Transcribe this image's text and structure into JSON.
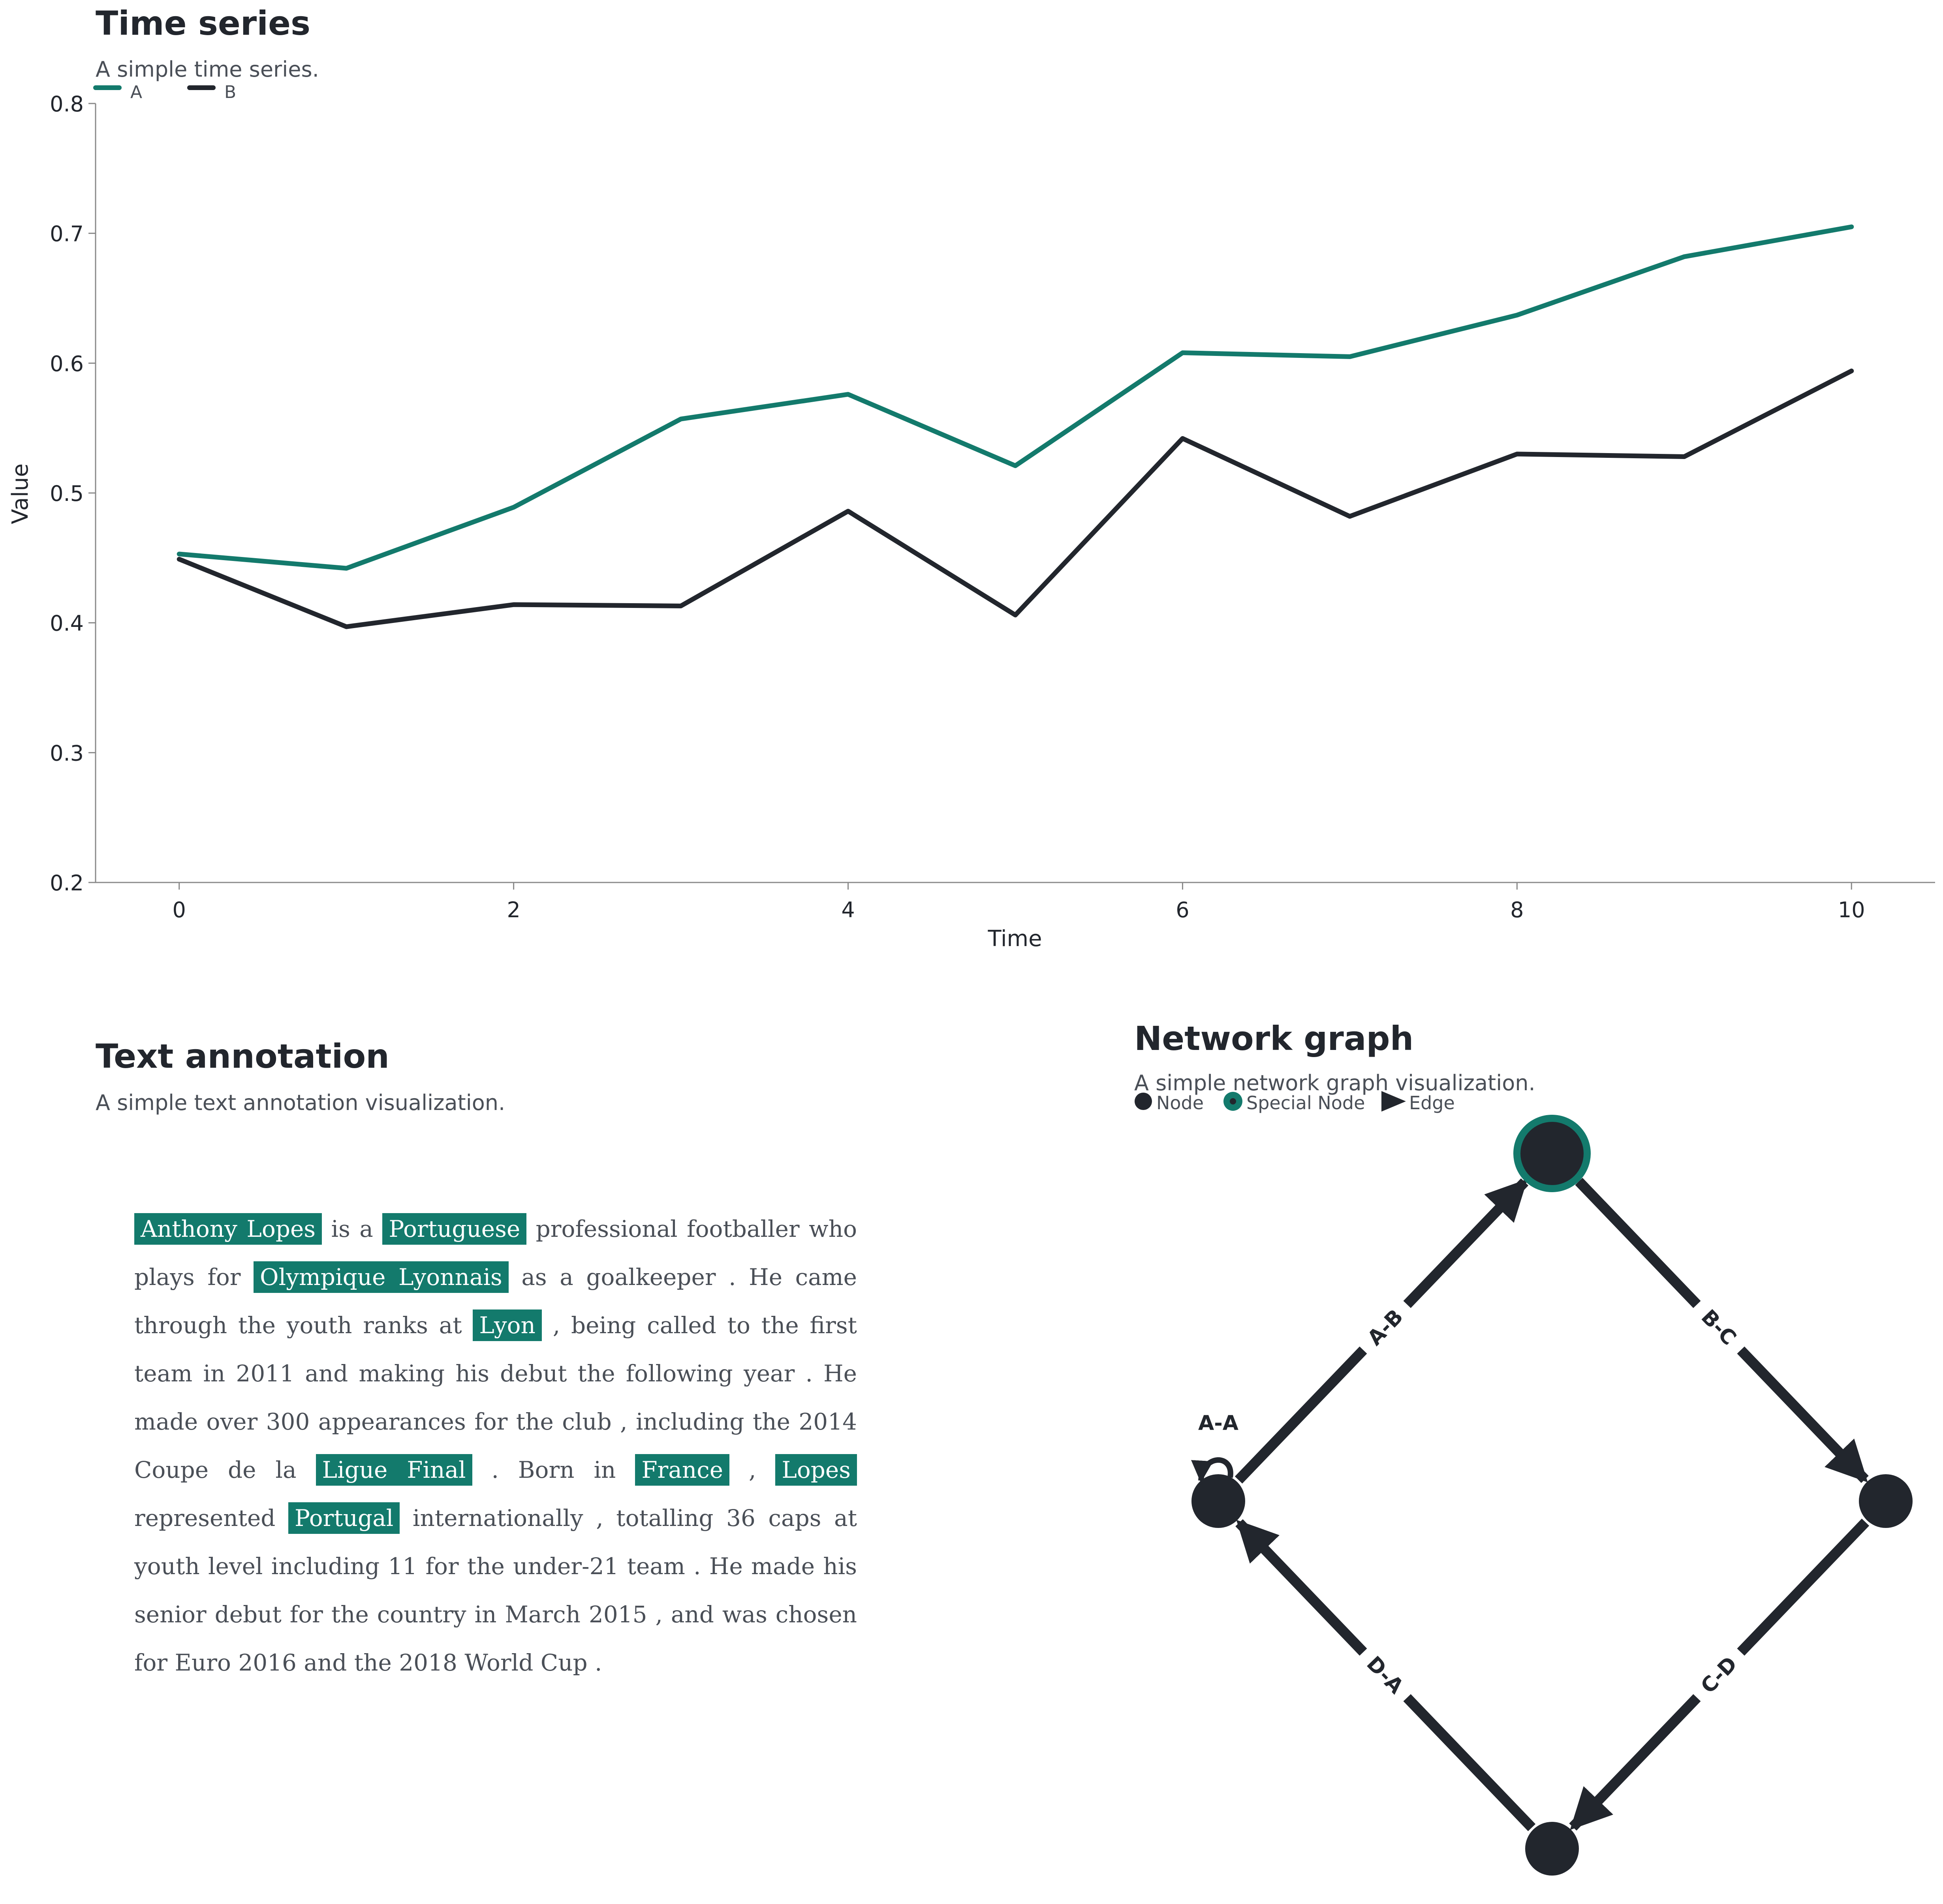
{
  "colors": {
    "teal": "#137a6c",
    "dark": "#22262d",
    "axis": "#888888",
    "text": "#4a4f57"
  },
  "time_series": {
    "title": "Time series",
    "subtitle": "A simple time series.",
    "chart_data": {
      "type": "line",
      "x": [
        0,
        1,
        2,
        3,
        4,
        5,
        6,
        7,
        8,
        9,
        10
      ],
      "series": [
        {
          "name": "A",
          "values": [
            0.453,
            0.442,
            0.489,
            0.557,
            0.576,
            0.521,
            0.608,
            0.605,
            0.637,
            0.682,
            0.705
          ]
        },
        {
          "name": "B",
          "values": [
            0.449,
            0.397,
            0.414,
            0.413,
            0.486,
            0.406,
            0.542,
            0.482,
            0.53,
            0.528,
            0.594
          ]
        }
      ],
      "xlabel": "Time",
      "ylabel": "Value",
      "xlim": [
        -0.5,
        10.5
      ],
      "ylim": [
        0.2,
        0.8
      ],
      "xticks": [
        0,
        2,
        4,
        6,
        8,
        10
      ],
      "yticks": [
        0.2,
        0.3,
        0.4,
        0.5,
        0.6,
        0.7,
        0.8
      ],
      "grid": false,
      "legend": "top-left"
    }
  },
  "text_annotation": {
    "title": "Text annotation",
    "subtitle": "A simple text annotation visualization.",
    "segments": [
      {
        "t": "Anthony Lopes",
        "e": true
      },
      {
        "t": " is a "
      },
      {
        "t": "Portuguese",
        "e": true
      },
      {
        "t": " professional footballer who plays for "
      },
      {
        "t": "Olympique Lyonnais",
        "e": true
      },
      {
        "t": " as a goalkeeper . He came through the youth ranks at "
      },
      {
        "t": "Lyon",
        "e": true
      },
      {
        "t": " , being called to the first team in 2011 and making his debut the following year . He made over 300 appearances for the club , including the 2014 Coupe de la "
      },
      {
        "t": "Ligue Final",
        "e": true
      },
      {
        "t": " . Born in "
      },
      {
        "t": "France",
        "e": true
      },
      {
        "t": " , "
      },
      {
        "t": "Lopes",
        "e": true
      },
      {
        "t": " represented "
      },
      {
        "t": "Portugal",
        "e": true
      },
      {
        "t": " internationally , totalling 36 caps at youth level including 11 for the under-21 team . He made his senior debut for the country in March 2015 , and was chosen for Euro 2016 and the 2018 World Cup ."
      }
    ]
  },
  "network": {
    "title": "Network graph",
    "subtitle": "A simple network graph visualization.",
    "legend": {
      "node": "Node",
      "special": "Special Node",
      "edge": "Edge"
    },
    "nodes": [
      {
        "id": "A",
        "special": false
      },
      {
        "id": "B",
        "special": true
      },
      {
        "id": "C",
        "special": false
      },
      {
        "id": "D",
        "special": false
      }
    ],
    "edges": [
      {
        "from": "A",
        "to": "B",
        "label": "A-B"
      },
      {
        "from": "B",
        "to": "C",
        "label": "B-C"
      },
      {
        "from": "C",
        "to": "D",
        "label": "C-D"
      },
      {
        "from": "D",
        "to": "A",
        "label": "D-A"
      },
      {
        "from": "A",
        "to": "A",
        "label": "A-A"
      }
    ]
  }
}
